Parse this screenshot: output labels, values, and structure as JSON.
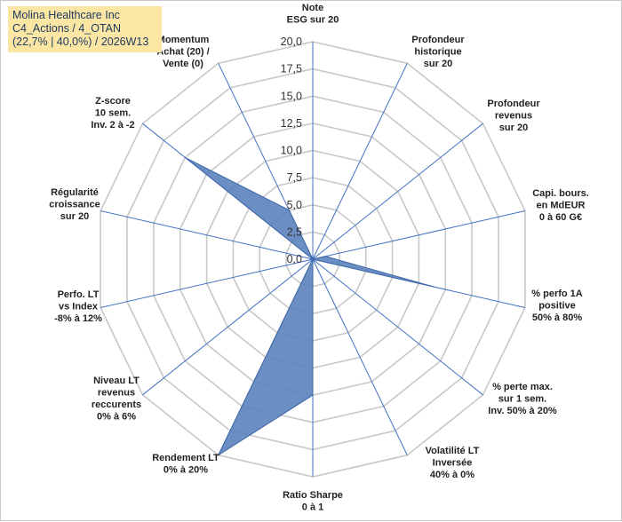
{
  "title_box": {
    "line1": "Molina Healthcare Inc",
    "line2": "C4_Actions / 4_OTAN",
    "line3": "(22,7% | 40,0%) / 2026W13"
  },
  "colors": {
    "fill": "#5b82bd",
    "stroke": "#3e67a8",
    "spoke": "#4472c4",
    "grid": "#c8c8c8",
    "title_bg": "#fbe6a4"
  },
  "chart_data": {
    "type": "radar",
    "range": [
      0,
      20
    ],
    "ticks": [
      "0,0",
      "2,5",
      "5,0",
      "7,5",
      "10,0",
      "12,5",
      "15,0",
      "17,5",
      "20,0"
    ],
    "axes": [
      {
        "label": [
          "Note",
          "ESG sur 20"
        ],
        "value": 0
      },
      {
        "label": [
          "Profondeur",
          "historique",
          "sur 20"
        ],
        "value": 0
      },
      {
        "label": [
          "Profondeur",
          "revenus",
          "sur 20"
        ],
        "value": 0
      },
      {
        "label": [
          "Capi. bours.",
          "en MdEUR",
          "0 à 60 G€"
        ],
        "value": 1.2
      },
      {
        "label": [
          "% perfo 1A",
          "positive",
          "50% à 80%"
        ],
        "value": 11.5
      },
      {
        "label": [
          "% perte max.",
          "sur 1 sem.",
          "Inv. 50% à 20%"
        ],
        "value": 0
      },
      {
        "label": [
          "Volatilité LT",
          "Inversée",
          "40% à 0%"
        ],
        "value": 0
      },
      {
        "label": [
          "Ratio Sharpe",
          "0 à 1"
        ],
        "value": 12.5
      },
      {
        "label": [
          "Rendement LT",
          "0% à 20%"
        ],
        "value": 20
      },
      {
        "label": [
          "Niveau LT",
          "revenus",
          "reccurents",
          "0% à 6%"
        ],
        "value": 0
      },
      {
        "label": [
          "Perfo. LT",
          "vs Index",
          "-8% à 12%"
        ],
        "value": 0
      },
      {
        "label": [
          "Régularité",
          "croissance",
          "sur 20"
        ],
        "value": 0
      },
      {
        "label": [
          "Z-score",
          "10 sem.",
          "Inv. 2 à -2"
        ],
        "value": 15
      },
      {
        "label": [
          "Momentum",
          "Achat (20) /",
          "Vente (0)"
        ],
        "value": 5
      }
    ]
  }
}
